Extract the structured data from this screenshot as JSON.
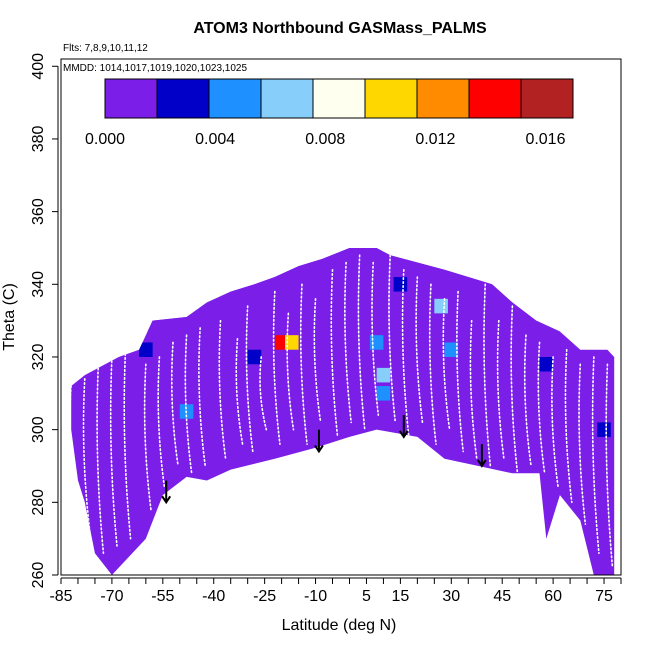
{
  "chart_data": {
    "type": "heatmap",
    "title": "ATOM3 Northbound GASMass_PALMS",
    "subtitle_flights": "Flts: 7,8,9,10,11,12",
    "subtitle_dates": "MMDD: 1014,1017,1019,1020,1023,1025",
    "xlabel": "Latitude (deg N)",
    "ylabel": "Theta (C)",
    "xlim": [
      -85,
      80
    ],
    "ylim": [
      260,
      402
    ],
    "x_ticks": [
      -85,
      -70,
      -55,
      -40,
      -25,
      -10,
      5,
      15,
      30,
      45,
      60,
      75
    ],
    "y_ticks": [
      260,
      280,
      300,
      320,
      340,
      360,
      380,
      400
    ],
    "colorbar": {
      "range": [
        0,
        0.017
      ],
      "tick_values": [
        0.0,
        0.004,
        0.008,
        0.012,
        0.016
      ],
      "tick_labels": [
        "0.000",
        "0.004",
        "0.008",
        "0.012",
        "0.016"
      ],
      "colors": [
        "#7b1fe8",
        "#0000c8",
        "#1e90ff",
        "#87cefa",
        "#fffff0",
        "#ffd700",
        "#ff8c00",
        "#ff0000",
        "#b22222"
      ]
    },
    "upper_boundary": [
      [
        -82,
        312
      ],
      [
        -78,
        315
      ],
      [
        -72,
        318
      ],
      [
        -68,
        320
      ],
      [
        -62,
        322
      ],
      [
        -58,
        330
      ],
      [
        -48,
        331
      ],
      [
        -42,
        335
      ],
      [
        -35,
        338
      ],
      [
        -28,
        340
      ],
      [
        -22,
        342
      ],
      [
        -15,
        345
      ],
      [
        -8,
        347
      ],
      [
        0,
        350
      ],
      [
        8,
        350
      ],
      [
        12,
        348
      ],
      [
        20,
        346
      ],
      [
        28,
        344
      ],
      [
        35,
        342
      ],
      [
        42,
        340
      ],
      [
        48,
        335
      ],
      [
        55,
        330
      ],
      [
        62,
        327
      ],
      [
        68,
        322
      ],
      [
        72,
        322
      ],
      [
        76,
        322
      ],
      [
        78,
        320
      ]
    ],
    "lower_boundary": [
      [
        -82,
        300
      ],
      [
        -80,
        286
      ],
      [
        -78,
        280
      ],
      [
        -75,
        266
      ],
      [
        -70,
        260
      ],
      [
        -60,
        270
      ],
      [
        -55,
        282
      ],
      [
        -48,
        287
      ],
      [
        -42,
        286
      ],
      [
        -35,
        289
      ],
      [
        -22,
        292
      ],
      [
        -10,
        295
      ],
      [
        0,
        298
      ],
      [
        8,
        300
      ],
      [
        20,
        298
      ],
      [
        28,
        292
      ],
      [
        38,
        290
      ],
      [
        48,
        288
      ],
      [
        56,
        288
      ],
      [
        58,
        270
      ],
      [
        62,
        282
      ],
      [
        68,
        275
      ],
      [
        72,
        260
      ],
      [
        78,
        260
      ]
    ],
    "enhancements": [
      {
        "lat": -20,
        "theta": 324,
        "value": 0.015
      },
      {
        "lat": -17,
        "theta": 324,
        "value": 0.01
      },
      {
        "lat": -60,
        "theta": 322,
        "value": 0.003
      },
      {
        "lat": -48,
        "theta": 305,
        "value": 0.005
      },
      {
        "lat": 8,
        "theta": 324,
        "value": 0.005
      },
      {
        "lat": 10,
        "theta": 315,
        "value": 0.006
      },
      {
        "lat": 10,
        "theta": 310,
        "value": 0.004
      },
      {
        "lat": 27,
        "theta": 334,
        "value": 0.006
      },
      {
        "lat": 30,
        "theta": 322,
        "value": 0.004
      },
      {
        "lat": 58,
        "theta": 318,
        "value": 0.003
      },
      {
        "lat": 75,
        "theta": 300,
        "value": 0.003
      },
      {
        "lat": 15,
        "theta": 340,
        "value": 0.002
      },
      {
        "lat": -28,
        "theta": 320,
        "value": 0.002
      }
    ],
    "profiles": [
      {
        "lat": -82,
        "top": 312,
        "bottom": 282
      },
      {
        "lat": -78,
        "top": 314,
        "bottom": 272
      },
      {
        "lat": -74,
        "top": 318,
        "bottom": 266
      },
      {
        "lat": -70,
        "top": 320,
        "bottom": 268
      },
      {
        "lat": -66,
        "top": 322,
        "bottom": 270
      },
      {
        "lat": -60,
        "top": 318,
        "bottom": 278
      },
      {
        "lat": -56,
        "top": 320,
        "bottom": 284
      },
      {
        "lat": -52,
        "top": 324,
        "bottom": 290
      },
      {
        "lat": -48,
        "top": 326,
        "bottom": 288
      },
      {
        "lat": -44,
        "top": 328,
        "bottom": 290
      },
      {
        "lat": -38,
        "top": 330,
        "bottom": 292
      },
      {
        "lat": -33,
        "top": 325,
        "bottom": 296
      },
      {
        "lat": -30,
        "top": 334,
        "bottom": 294
      },
      {
        "lat": -26,
        "top": 320,
        "bottom": 300
      },
      {
        "lat": -22,
        "top": 338,
        "bottom": 296
      },
      {
        "lat": -18,
        "top": 332,
        "bottom": 300
      },
      {
        "lat": -14,
        "top": 340,
        "bottom": 296
      },
      {
        "lat": -10,
        "top": 336,
        "bottom": 302
      },
      {
        "lat": -5,
        "top": 344,
        "bottom": 298
      },
      {
        "lat": -1,
        "top": 346,
        "bottom": 302
      },
      {
        "lat": 3,
        "top": 348,
        "bottom": 300
      },
      {
        "lat": 7,
        "top": 346,
        "bottom": 304
      },
      {
        "lat": 12,
        "top": 348,
        "bottom": 302
      },
      {
        "lat": 16,
        "top": 344,
        "bottom": 298
      },
      {
        "lat": 20,
        "top": 342,
        "bottom": 302
      },
      {
        "lat": 24,
        "top": 340,
        "bottom": 296
      },
      {
        "lat": 28,
        "top": 336,
        "bottom": 300
      },
      {
        "lat": 32,
        "top": 338,
        "bottom": 294
      },
      {
        "lat": 36,
        "top": 330,
        "bottom": 292
      },
      {
        "lat": 40,
        "top": 340,
        "bottom": 290
      },
      {
        "lat": 44,
        "top": 330,
        "bottom": 292
      },
      {
        "lat": 48,
        "top": 334,
        "bottom": 288
      },
      {
        "lat": 52,
        "top": 326,
        "bottom": 290
      },
      {
        "lat": 56,
        "top": 324,
        "bottom": 288
      },
      {
        "lat": 60,
        "top": 320,
        "bottom": 284
      },
      {
        "lat": 64,
        "top": 322,
        "bottom": 280
      },
      {
        "lat": 68,
        "top": 318,
        "bottom": 274
      },
      {
        "lat": 72,
        "top": 320,
        "bottom": 266
      },
      {
        "lat": 76,
        "top": 318,
        "bottom": 262
      }
    ],
    "arrows": [
      {
        "lat": -54,
        "theta_top": 286,
        "theta_tip": 280
      },
      {
        "lat": -9,
        "theta_top": 300,
        "theta_tip": 294
      },
      {
        "lat": 16,
        "theta_top": 304,
        "theta_tip": 298
      },
      {
        "lat": 39,
        "theta_top": 296,
        "theta_tip": 290
      }
    ]
  }
}
